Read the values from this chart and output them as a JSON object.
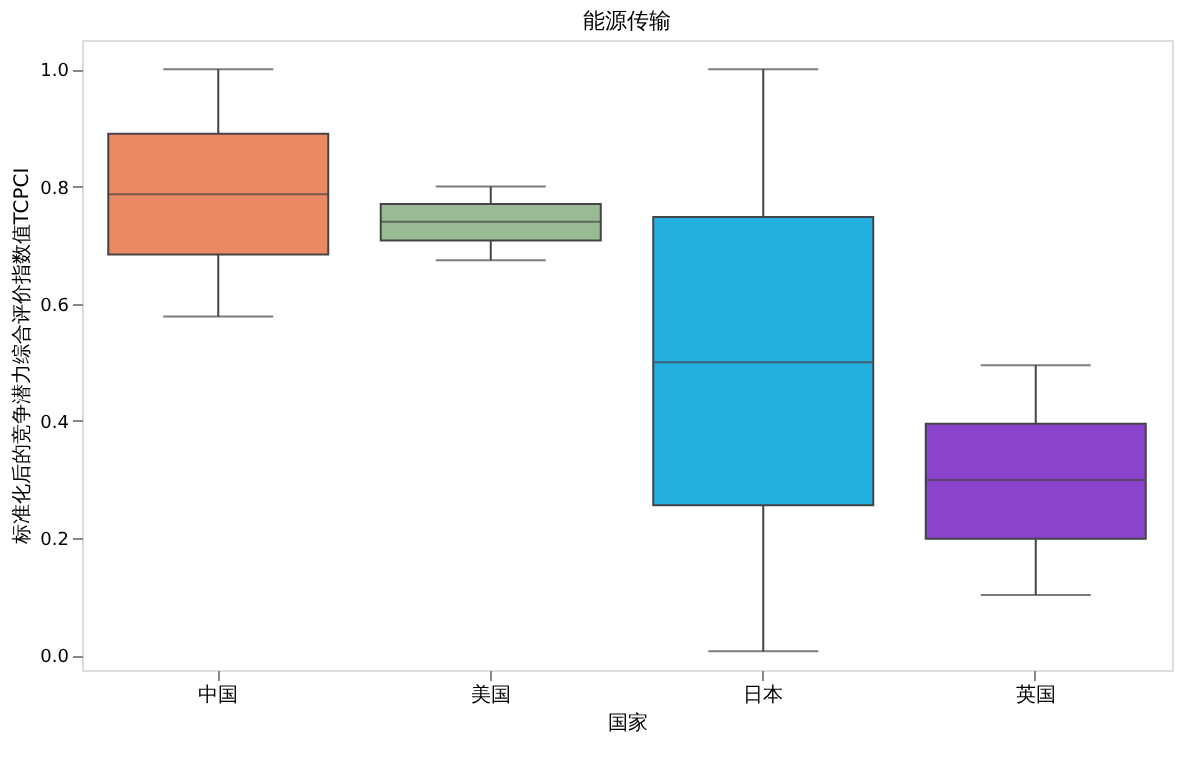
{
  "chart_data": {
    "type": "box",
    "title": "能源传输",
    "xlabel": "国家",
    "ylabel": "标准化后的竞争潜力综合评价指数值TCPCI",
    "categories": [
      "中国",
      "美国",
      "日本",
      "英国"
    ],
    "colors": [
      "#e98a65",
      "#98bb94",
      "#23afe0",
      "#8943cc"
    ],
    "boxes": [
      {
        "low": 0.578,
        "q1": 0.684,
        "median": 0.787,
        "q3": 0.89,
        "high": 1.0
      },
      {
        "low": 0.674,
        "q1": 0.708,
        "median": 0.74,
        "q3": 0.77,
        "high": 0.8
      },
      {
        "low": 0.007,
        "q1": 0.256,
        "median": 0.5,
        "q3": 0.748,
        "high": 1.0
      },
      {
        "low": 0.103,
        "q1": 0.199,
        "median": 0.299,
        "q3": 0.395,
        "high": 0.495
      }
    ],
    "ylim": [
      -0.025,
      1.05
    ],
    "yticks": [
      {
        "value": 0,
        "label": "0.0"
      },
      {
        "value": 0.2,
        "label": "0.2"
      },
      {
        "value": 0.4,
        "label": "0.4"
      },
      {
        "value": 0.6,
        "label": "0.6"
      },
      {
        "value": 0.8,
        "label": "0.8"
      },
      {
        "value": 1,
        "label": "1.0"
      }
    ],
    "grid": false
  }
}
